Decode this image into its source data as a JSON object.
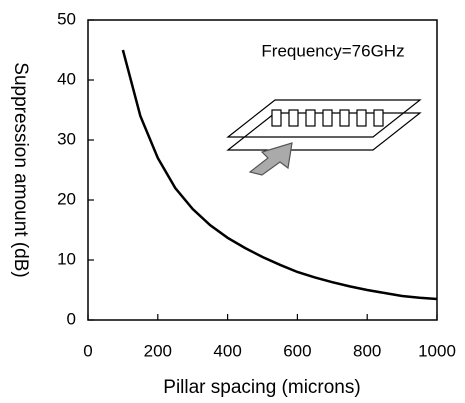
{
  "chart_data": {
    "type": "line",
    "xlabel": "Pillar spacing (microns)",
    "ylabel": "Suppression amount (dB)",
    "annotation": "Frequency=76GHz",
    "x": [
      100,
      150,
      200,
      250,
      300,
      350,
      400,
      450,
      500,
      550,
      600,
      650,
      700,
      750,
      800,
      850,
      900,
      950,
      1000
    ],
    "values": [
      45,
      34,
      27,
      22,
      18.5,
      15.8,
      13.7,
      12,
      10.5,
      9.2,
      8,
      7.1,
      6.3,
      5.6,
      5,
      4.5,
      4,
      3.7,
      3.5
    ],
    "color": "#000000",
    "xlim": [
      0,
      1000
    ],
    "xticks": [
      0,
      200,
      400,
      600,
      800,
      1000
    ],
    "ylim": [
      0,
      50
    ],
    "yticks": [
      0,
      10,
      20,
      30,
      40,
      50
    ],
    "grid": false
  }
}
